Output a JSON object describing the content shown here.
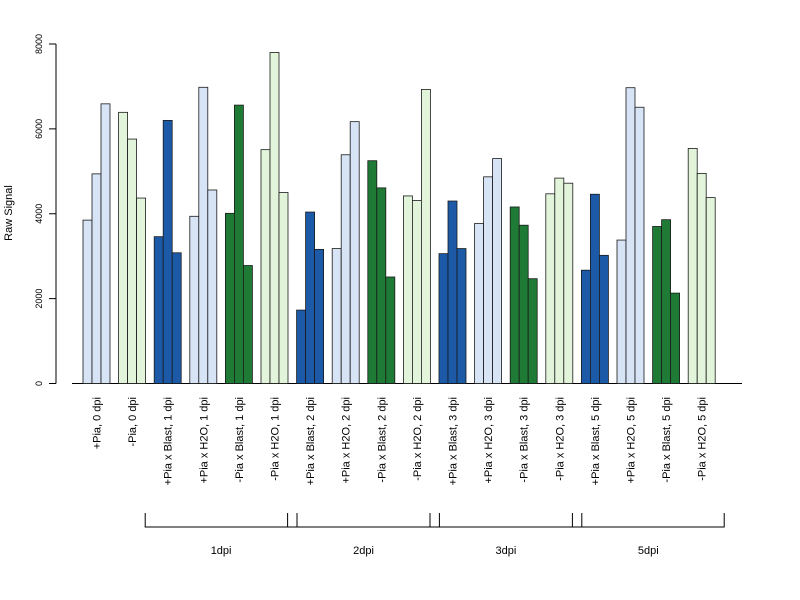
{
  "chart_data": {
    "type": "bar",
    "ylabel": "Raw Signal",
    "xlabel": "",
    "ylim": [
      0,
      8000
    ],
    "yticks": [
      0,
      2000,
      4000,
      6000,
      8000
    ],
    "grid": false,
    "legend": "none",
    "categories": [
      "+Pia, 0 dpi",
      "-Pia, 0 dpi",
      "+Pia x Blast, 1 dpi",
      "+Pia x H2O, 1 dpi",
      "-Pia x Blast, 1 dpi",
      "-Pia x H2O, 1 dpi",
      "+Pia x Blast, 2 dpi",
      "+Pia x H2O, 2 dpi",
      "-Pia x Blast, 2 dpi",
      "-Pia x H2O, 2 dpi",
      "+Pia x Blast, 3 dpi",
      "+Pia x H2O, 3 dpi",
      "-Pia x Blast, 3 dpi",
      "-Pia x H2O, 3 dpi",
      "+Pia x Blast, 5 dpi",
      "+Pia x H2O, 5 dpi",
      "-Pia x Blast, 5 dpi",
      "-Pia x H2O, 5 dpi"
    ],
    "category_colors": [
      "#d6e4f5",
      "#e2f5db",
      "#1c5aa8",
      "#d6e4f5",
      "#1f7a35",
      "#e2f5db",
      "#1c5aa8",
      "#d6e4f5",
      "#1f7a35",
      "#e2f5db",
      "#1c5aa8",
      "#d6e4f5",
      "#1f7a35",
      "#e2f5db",
      "#1c5aa8",
      "#d6e4f5",
      "#1f7a35",
      "#e2f5db"
    ],
    "replicates": [
      [
        3850,
        4940,
        6590
      ],
      [
        6390,
        5760,
        4370
      ],
      [
        3460,
        6200,
        3080
      ],
      [
        3940,
        6980,
        4560
      ],
      [
        4010,
        6560,
        2780
      ],
      [
        5510,
        7800,
        4500
      ],
      [
        1730,
        4040,
        3160
      ],
      [
        3180,
        5390,
        6170
      ],
      [
        5250,
        4610,
        2510
      ],
      [
        4420,
        4310,
        6930
      ],
      [
        3060,
        4300,
        3180
      ],
      [
        3770,
        4870,
        5300
      ],
      [
        4160,
        3730,
        2470
      ],
      [
        4470,
        4840,
        4720
      ],
      [
        2670,
        4460,
        3020
      ],
      [
        3380,
        6970,
        6510
      ],
      [
        3700,
        3860,
        2130
      ],
      [
        5540,
        4950,
        4380
      ]
    ],
    "groups": [
      {
        "label": "1dpi",
        "from": 2,
        "to": 5
      },
      {
        "label": "2dpi",
        "from": 6,
        "to": 9
      },
      {
        "label": "3dpi",
        "from": 10,
        "to": 13
      },
      {
        "label": "5dpi",
        "from": 14,
        "to": 17
      }
    ]
  }
}
